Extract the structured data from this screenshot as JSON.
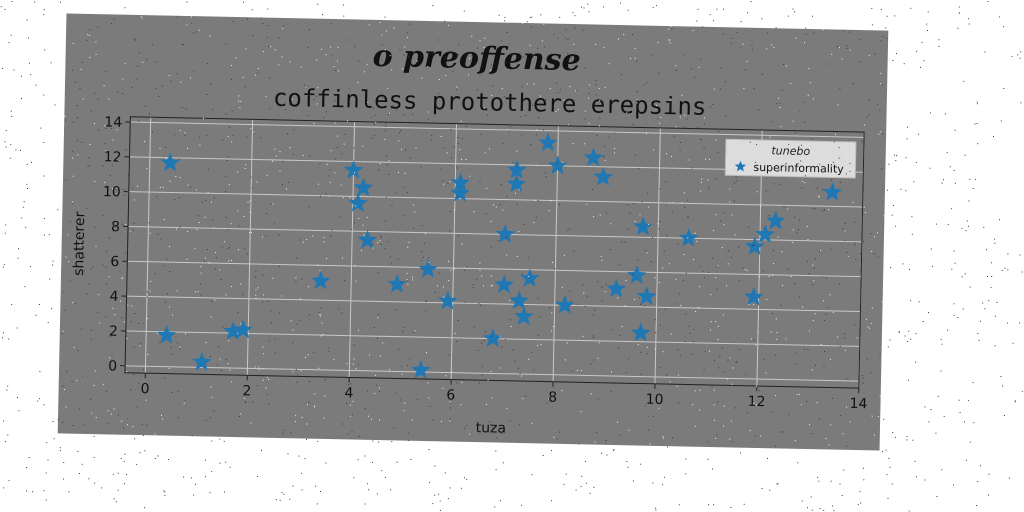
{
  "chart_data": {
    "type": "scatter",
    "title": "o preoffense",
    "subtitle": "coffinless protothere erepsins",
    "xlabel": "tuza",
    "ylabel": "shatterer",
    "xlim": [
      -0.4,
      14
    ],
    "ylim": [
      -0.4,
      14.3
    ],
    "xticks": [
      0,
      2,
      4,
      6,
      8,
      10,
      12,
      14
    ],
    "yticks": [
      0,
      2,
      4,
      6,
      8,
      10,
      12,
      14
    ],
    "grid": true,
    "legend": {
      "title": "tunebo",
      "placement": "top-right"
    },
    "marker": "star",
    "colors": {
      "marker": "#1f77b4",
      "background": "#7b7b7b",
      "grid": "#c8c8c8"
    },
    "series": [
      {
        "name": "superinformality",
        "points": [
          [
            0.4,
            11.7
          ],
          [
            0.4,
            1.8
          ],
          [
            1.1,
            0.3
          ],
          [
            1.7,
            2.1
          ],
          [
            1.9,
            2.2
          ],
          [
            3.4,
            5.1
          ],
          [
            4.0,
            11.5
          ],
          [
            4.1,
            9.6
          ],
          [
            4.2,
            10.5
          ],
          [
            4.3,
            7.5
          ],
          [
            4.9,
            5.0
          ],
          [
            5.5,
            5.9
          ],
          [
            5.4,
            0.1
          ],
          [
            5.9,
            4.1
          ],
          [
            6.1,
            10.9
          ],
          [
            6.1,
            10.3
          ],
          [
            6.8,
            2.0
          ],
          [
            7.0,
            8.0
          ],
          [
            7.0,
            5.1
          ],
          [
            7.2,
            11.7
          ],
          [
            7.2,
            10.9
          ],
          [
            7.3,
            4.2
          ],
          [
            7.4,
            3.3
          ],
          [
            7.5,
            5.5
          ],
          [
            7.8,
            13.3
          ],
          [
            8.0,
            12.0
          ],
          [
            8.2,
            4.0
          ],
          [
            8.7,
            12.5
          ],
          [
            8.9,
            11.4
          ],
          [
            9.2,
            5.0
          ],
          [
            9.6,
            5.8
          ],
          [
            9.7,
            8.6
          ],
          [
            9.7,
            2.5
          ],
          [
            9.8,
            4.6
          ],
          [
            10.6,
            8.0
          ],
          [
            11.9,
            7.6
          ],
          [
            11.9,
            4.7
          ],
          [
            12.1,
            8.3
          ],
          [
            12.3,
            9.1
          ],
          [
            13.4,
            10.8
          ]
        ]
      }
    ]
  }
}
